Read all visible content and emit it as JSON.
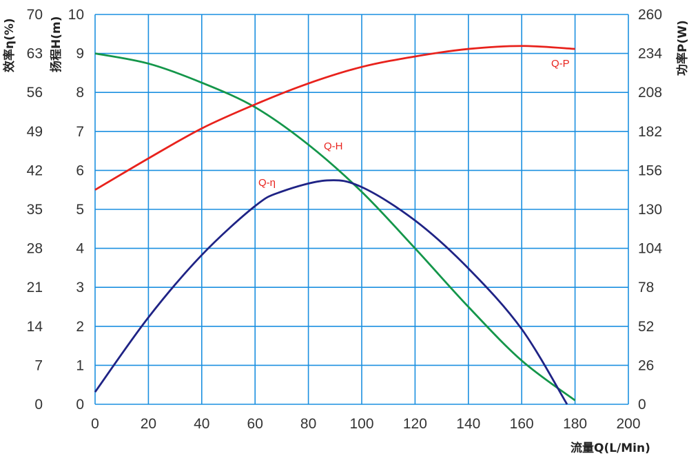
{
  "chart_data": {
    "type": "line",
    "xlabel": "流量Q(L/Min)",
    "ylabel_left_outer": "效率η(%)",
    "ylabel_left_inner": "扬程H(m)",
    "ylabel_right": "功率P(W)",
    "x_ticks": [
      "0",
      "20",
      "40",
      "60",
      "80",
      "100",
      "120",
      "140",
      "160",
      "180",
      "200"
    ],
    "xlim": [
      0,
      200
    ],
    "y_eta_ticks": [
      "0",
      "7",
      "14",
      "21",
      "28",
      "35",
      "42",
      "49",
      "56",
      "63",
      "70"
    ],
    "y_eta_lim": [
      0,
      70
    ],
    "y_h_ticks": [
      "0",
      "1",
      "2",
      "3",
      "4",
      "5",
      "6",
      "7",
      "8",
      "9",
      "10"
    ],
    "y_h_lim": [
      0,
      10
    ],
    "y_p_ticks": [
      "0",
      "26",
      "52",
      "78",
      "104",
      "130",
      "156",
      "182",
      "208",
      "234",
      "260"
    ],
    "y_p_lim": [
      0,
      260
    ],
    "grid": true,
    "colors": {
      "grid": "#1a8fe0",
      "Q-H": "#14964a",
      "Q-P": "#e8221c",
      "Q-η": "#1f2385",
      "label": "#e8221c"
    },
    "series": [
      {
        "name": "Q-H",
        "axis": "H",
        "x": [
          0,
          20,
          40,
          60,
          80,
          100,
          120,
          140,
          160,
          180
        ],
        "y": [
          9.0,
          8.74,
          8.25,
          7.62,
          6.66,
          5.45,
          4.0,
          2.5,
          1.12,
          0.1
        ]
      },
      {
        "name": "Q-P",
        "axis": "P",
        "x": [
          0,
          20,
          40,
          60,
          80,
          100,
          120,
          140,
          160,
          180
        ],
        "y": [
          143,
          164,
          184,
          200,
          214,
          225,
          232,
          237,
          239,
          237
        ]
      },
      {
        "name": "Q-η",
        "axis": "eta",
        "x": [
          0,
          20,
          40,
          60,
          70,
          87,
          100,
          120,
          140,
          160,
          177
        ],
        "y": [
          2.2,
          15.6,
          26.8,
          35.6,
          38.2,
          40.2,
          39.0,
          33.0,
          24.4,
          13.5,
          0
        ]
      }
    ]
  }
}
